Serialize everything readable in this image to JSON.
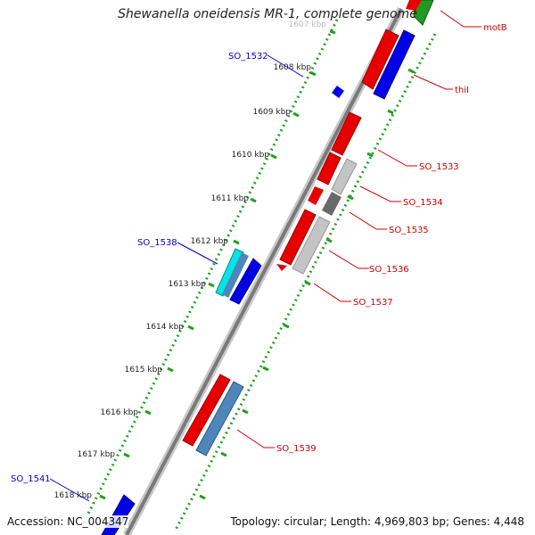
{
  "title": "Shewanella oneidensis MR-1, complete genome",
  "footer": {
    "accession": "Accession: NC_004347",
    "topology": "Topology: circular; Length: 4,969,803 bp; Genes: 4,448"
  },
  "colors": {
    "forward_gene": "#e60000",
    "reverse_gene": "#0000e6",
    "gray_feature": "#c4c4c4",
    "dark_gray_feature": "#6a6a6a",
    "cyan_feature": "#00e5e5",
    "steel_feature": "#4f86b9",
    "green_feature": "#229922",
    "tick_green": "#22a022",
    "backbone": "#888888",
    "label_red": "#cc0000",
    "label_blue": "#0000cc"
  },
  "ruler": {
    "tick_labels": [
      "1607 kbp",
      "1608 kbp",
      "1609 kbp",
      "1610 kbp",
      "1611 kbp",
      "1612 kbp",
      "1613 kbp",
      "1614 kbp",
      "1615 kbp",
      "1616 kbp",
      "1617 kbp",
      "1618 kbp"
    ]
  },
  "gene_labels": {
    "right": [
      "motB",
      "thiI",
      "SO_1533",
      "SO_1534",
      "SO_1535",
      "SO_1536",
      "SO_1537",
      "SO_1539"
    ],
    "left": [
      "SO_1532",
      "SO_1538",
      "SO_1541"
    ]
  }
}
